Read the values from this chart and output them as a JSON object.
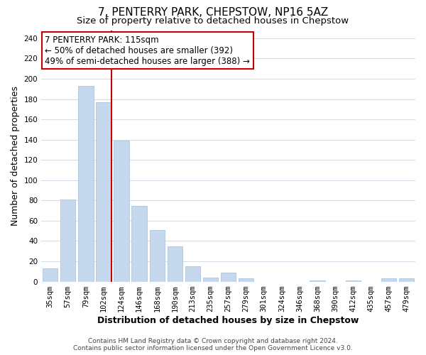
{
  "title": "7, PENTERRY PARK, CHEPSTOW, NP16 5AZ",
  "subtitle": "Size of property relative to detached houses in Chepstow",
  "xlabel": "Distribution of detached houses by size in Chepstow",
  "ylabel": "Number of detached properties",
  "bar_labels": [
    "35sqm",
    "57sqm",
    "79sqm",
    "102sqm",
    "124sqm",
    "146sqm",
    "168sqm",
    "190sqm",
    "213sqm",
    "235sqm",
    "257sqm",
    "279sqm",
    "301sqm",
    "324sqm",
    "346sqm",
    "368sqm",
    "390sqm",
    "412sqm",
    "435sqm",
    "457sqm",
    "479sqm"
  ],
  "bar_heights": [
    13,
    81,
    193,
    177,
    139,
    75,
    51,
    35,
    15,
    4,
    9,
    3,
    0,
    0,
    0,
    1,
    0,
    1,
    0,
    3,
    3
  ],
  "bar_color": "#c5d8ed",
  "bar_edge_color": "#adc4de",
  "vline_color": "#cc0000",
  "vline_x": 3.5,
  "annotation_text": "7 PENTERRY PARK: 115sqm\n← 50% of detached houses are smaller (392)\n49% of semi-detached houses are larger (388) →",
  "annotation_box_color": "white",
  "annotation_box_edge_color": "#cc0000",
  "ylim": [
    0,
    248
  ],
  "yticks": [
    0,
    20,
    40,
    60,
    80,
    100,
    120,
    140,
    160,
    180,
    200,
    220,
    240
  ],
  "footer": "Contains HM Land Registry data © Crown copyright and database right 2024.\nContains public sector information licensed under the Open Government Licence v3.0.",
  "background_color": "#ffffff",
  "grid_color": "#d4dde8",
  "title_fontsize": 11,
  "subtitle_fontsize": 9.5,
  "axis_label_fontsize": 9,
  "tick_fontsize": 7.5,
  "annotation_fontsize": 8.5,
  "footer_fontsize": 6.5
}
